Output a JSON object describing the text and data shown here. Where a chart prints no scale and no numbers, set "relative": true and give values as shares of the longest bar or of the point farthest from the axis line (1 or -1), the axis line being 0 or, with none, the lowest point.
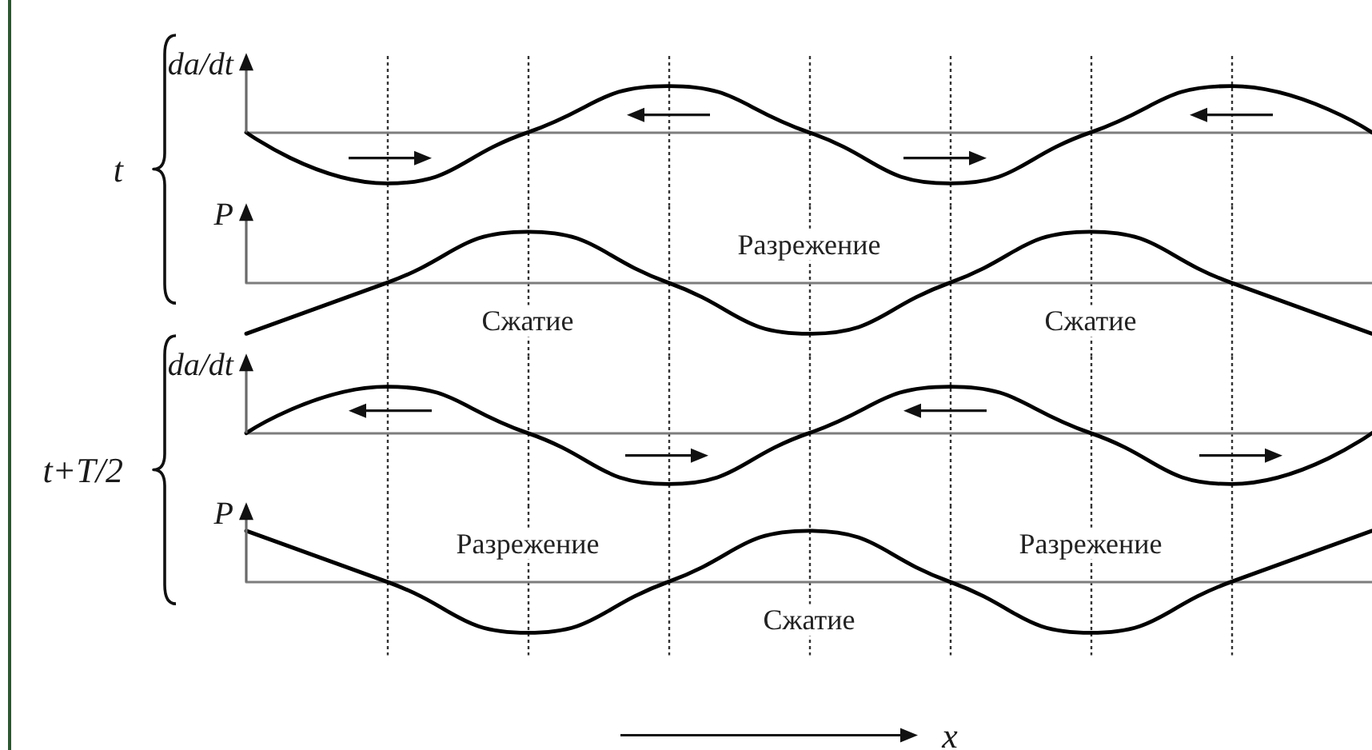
{
  "chart_data": [
    {
      "type": "line",
      "title": "t",
      "relative": true,
      "ylabel": "da/dt",
      "tick_labels": false,
      "grid": "x",
      "color": "#000000",
      "categories": [
        null,
        null,
        null,
        null,
        null,
        null,
        null,
        null,
        null
      ],
      "values": [
        0,
        -1,
        0,
        0.91,
        0,
        -1,
        0,
        0.91,
        0
      ]
    },
    {
      "type": "line",
      "relative": true,
      "ylabel": "P",
      "tick_labels": false,
      "grid": "x",
      "color": "#000000",
      "categories": [
        null,
        null,
        null,
        null,
        null,
        null,
        null,
        null,
        null
      ],
      "values": [
        -1,
        0,
        1,
        0,
        -1,
        0,
        1,
        0,
        -1
      ],
      "annotations": [
        "Сжатие",
        "Разрежение",
        "Сжатие"
      ]
    },
    {
      "type": "line",
      "title": "t+T/2",
      "relative": true,
      "ylabel": "da/dt",
      "tick_labels": false,
      "grid": "x",
      "color": "#000000",
      "categories": [
        null,
        null,
        null,
        null,
        null,
        null,
        null,
        null,
        null
      ],
      "values": [
        0,
        0.91,
        0,
        -1,
        0,
        0.91,
        0,
        -1,
        0
      ]
    },
    {
      "type": "line",
      "relative": true,
      "ylabel": "P",
      "xlabel": "x",
      "tick_labels": false,
      "grid": "x",
      "color": "#000000",
      "categories": [
        null,
        null,
        null,
        null,
        null,
        null,
        null,
        null,
        null
      ],
      "values": [
        1,
        0,
        -1,
        0,
        1,
        0,
        -1,
        0,
        1
      ],
      "annotations": [
        "Разрежение",
        "Сжатие",
        "Разрежение"
      ]
    }
  ]
}
